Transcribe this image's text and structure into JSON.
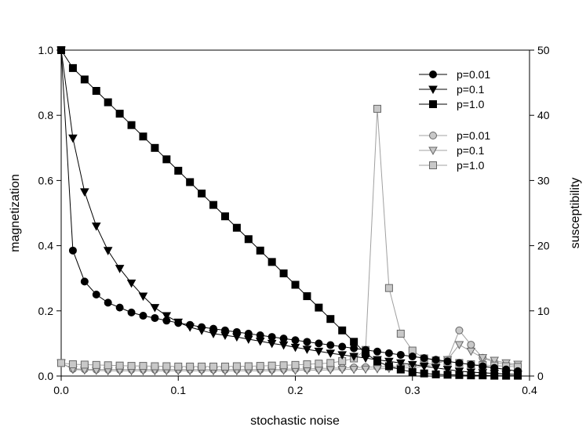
{
  "chart_data": {
    "type": "line",
    "xlabel": "stochastic noise",
    "ylabel_left": "magnetization",
    "ylabel_right": "susceptibility",
    "xlim": [
      0.0,
      0.4
    ],
    "ylim_left": [
      0.0,
      1.0
    ],
    "ylim_right": [
      0,
      50
    ],
    "x_ticks": [
      "0.0",
      "0.1",
      "0.2",
      "0.3",
      "0.4"
    ],
    "y_left_ticks": [
      "0.0",
      "0.2",
      "0.4",
      "0.6",
      "0.8",
      "1.0"
    ],
    "y_right_ticks": [
      "0",
      "10",
      "20",
      "30",
      "40",
      "50"
    ],
    "grid": false,
    "legend_position": "top-right",
    "colors": {
      "black_series": "#000000",
      "gray_fill": "#c8c8c8",
      "gray_line": "#a0a0a0"
    },
    "x": [
      0.0,
      0.01,
      0.02,
      0.03,
      0.04,
      0.05,
      0.06,
      0.07,
      0.08,
      0.09,
      0.1,
      0.11,
      0.12,
      0.13,
      0.14,
      0.15,
      0.16,
      0.17,
      0.18,
      0.19,
      0.2,
      0.21,
      0.22,
      0.23,
      0.24,
      0.25,
      0.26,
      0.27,
      0.28,
      0.29,
      0.3,
      0.31,
      0.32,
      0.33,
      0.34,
      0.35,
      0.36,
      0.37,
      0.38,
      0.39
    ],
    "series": [
      {
        "name": "p=0.01",
        "axis": "left",
        "marker": "circle",
        "style": "black",
        "values": [
          1.0,
          0.385,
          0.29,
          0.25,
          0.225,
          0.21,
          0.195,
          0.185,
          0.178,
          0.17,
          0.163,
          0.157,
          0.15,
          0.145,
          0.14,
          0.135,
          0.13,
          0.125,
          0.12,
          0.115,
          0.11,
          0.105,
          0.1,
          0.095,
          0.09,
          0.085,
          0.08,
          0.075,
          0.07,
          0.065,
          0.06,
          0.055,
          0.05,
          0.045,
          0.04,
          0.035,
          0.03,
          0.025,
          0.02,
          0.015
        ]
      },
      {
        "name": "p=0.1",
        "axis": "left",
        "marker": "triangle-down",
        "style": "black",
        "values": [
          1.0,
          0.73,
          0.565,
          0.46,
          0.385,
          0.33,
          0.285,
          0.245,
          0.21,
          0.185,
          0.165,
          0.15,
          0.14,
          0.13,
          0.125,
          0.12,
          0.113,
          0.107,
          0.1,
          0.095,
          0.088,
          0.082,
          0.076,
          0.07,
          0.065,
          0.06,
          0.055,
          0.05,
          0.045,
          0.04,
          0.035,
          0.03,
          0.025,
          0.02,
          0.015,
          0.012,
          0.01,
          0.008,
          0.006,
          0.005
        ]
      },
      {
        "name": "p=1.0",
        "axis": "left",
        "marker": "square",
        "style": "black",
        "values": [
          1.0,
          0.945,
          0.91,
          0.875,
          0.84,
          0.805,
          0.77,
          0.735,
          0.7,
          0.665,
          0.63,
          0.595,
          0.56,
          0.525,
          0.49,
          0.455,
          0.42,
          0.385,
          0.35,
          0.315,
          0.28,
          0.245,
          0.21,
          0.175,
          0.14,
          0.105,
          0.07,
          0.045,
          0.03,
          0.02,
          0.012,
          0.008,
          0.005,
          0.004,
          0.003,
          0.002,
          0.002,
          0.001,
          0.001,
          0.001
        ]
      },
      {
        "name": "p=0.01",
        "axis": "right",
        "marker": "circle",
        "style": "gray",
        "values": [
          2.0,
          1.1,
          1.05,
          1.0,
          1.0,
          1.0,
          1.0,
          1.0,
          1.0,
          1.0,
          1.0,
          1.0,
          1.0,
          1.0,
          1.0,
          1.0,
          1.0,
          1.0,
          1.0,
          1.05,
          1.1,
          1.1,
          1.15,
          1.2,
          1.25,
          1.3,
          1.35,
          1.4,
          1.45,
          1.5,
          1.6,
          1.8,
          2.0,
          2.5,
          7.0,
          4.8,
          2.8,
          2.1,
          1.8,
          1.6
        ]
      },
      {
        "name": "p=0.1",
        "axis": "right",
        "marker": "triangle-down",
        "style": "gray",
        "values": [
          2.0,
          1.0,
          0.9,
          0.85,
          0.8,
          0.8,
          0.8,
          0.8,
          0.8,
          0.8,
          0.8,
          0.8,
          0.8,
          0.8,
          0.8,
          0.8,
          0.8,
          0.8,
          0.8,
          0.85,
          0.85,
          0.9,
          0.9,
          0.95,
          1.0,
          1.0,
          1.05,
          1.1,
          1.15,
          1.2,
          1.3,
          1.5,
          1.8,
          2.5,
          4.8,
          3.8,
          2.8,
          2.4,
          2.0,
          1.8
        ]
      },
      {
        "name": "p=1.0",
        "axis": "right",
        "marker": "square",
        "style": "gray",
        "values": [
          2.0,
          1.8,
          1.75,
          1.7,
          1.65,
          1.6,
          1.55,
          1.55,
          1.5,
          1.5,
          1.45,
          1.45,
          1.45,
          1.45,
          1.45,
          1.5,
          1.5,
          1.55,
          1.6,
          1.65,
          1.7,
          1.8,
          1.9,
          2.0,
          2.3,
          2.7,
          4.0,
          41.0,
          13.5,
          6.5,
          3.9,
          2.7,
          2.4,
          2.2,
          2.0,
          1.8,
          1.7,
          1.6,
          1.5,
          1.4
        ]
      }
    ]
  }
}
